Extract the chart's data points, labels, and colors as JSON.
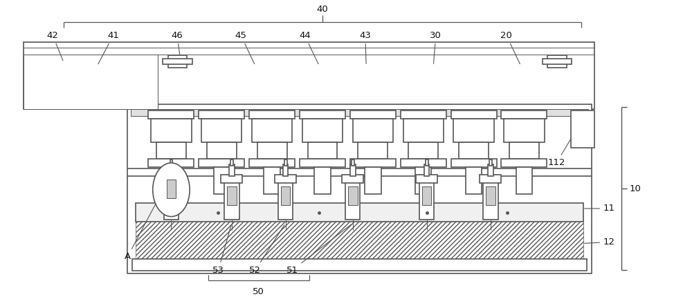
{
  "bg_color": "#ffffff",
  "line_color": "#555555",
  "label_color": "#111111",
  "fig_width": 10.0,
  "fig_height": 4.33,
  "dpi": 100
}
